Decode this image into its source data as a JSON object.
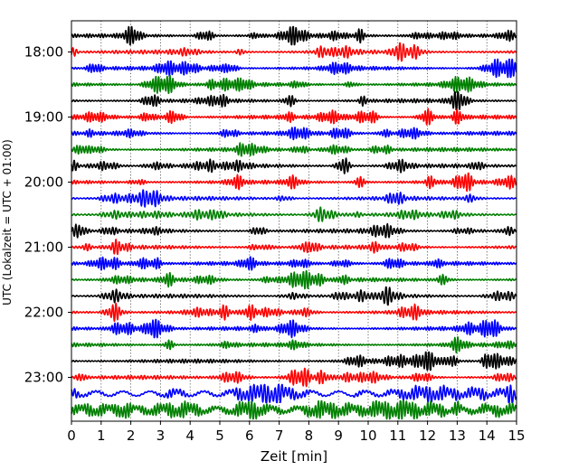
{
  "chart_data": {
    "type": "line",
    "title": "",
    "xlabel": "Zeit  [min]",
    "ylabel": "UTC (Lokalzeit = UTC + 01:00)",
    "xlim": [
      0,
      15
    ],
    "x_ticks": [
      "0",
      "1",
      "2",
      "3",
      "4",
      "5",
      "6",
      "7",
      "8",
      "9",
      "10",
      "11",
      "12",
      "13",
      "14",
      "15"
    ],
    "y_ticks": [
      "18:00",
      "19:00",
      "20:00",
      "21:00",
      "22:00",
      "23:00"
    ],
    "trace_interval_min": 15,
    "first_trace": "17:45",
    "trace_count": 24,
    "trace_colors": [
      "#000000",
      "#ff0000",
      "#0000ff",
      "#008000"
    ],
    "grid": "vertical dotted at each minute"
  }
}
